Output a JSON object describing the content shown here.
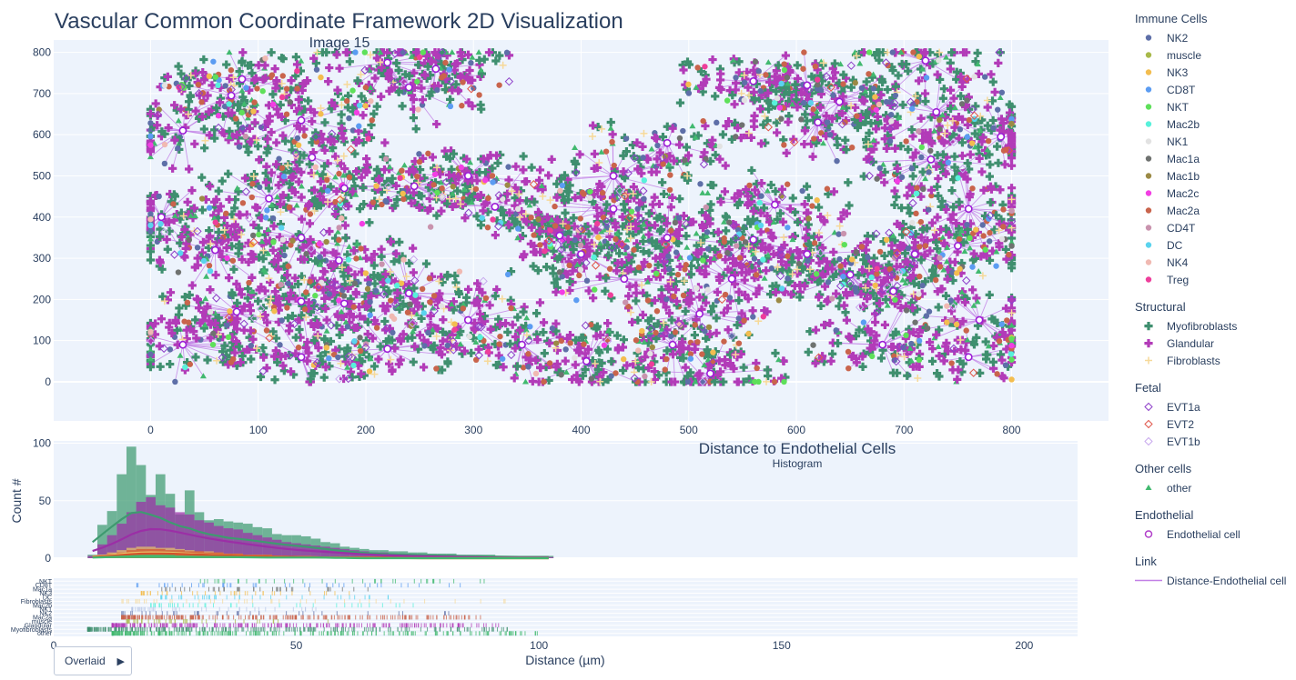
{
  "title": "Vascular Common Coordinate Framework 2D Visualization",
  "colors": {
    "plot_bg": "#edf3fc",
    "grid": "#ffffff",
    "link": "#b36ae2",
    "endothelial": "#9b1cd6"
  },
  "scatter": {
    "subtitle": "Image 15",
    "x_ticks": [
      0,
      100,
      200,
      300,
      400,
      500,
      600,
      700,
      800
    ],
    "y_ticks": [
      0,
      100,
      200,
      300,
      400,
      500,
      600,
      700,
      800
    ],
    "xlim": [
      -90,
      890
    ],
    "ylim": [
      -95,
      830
    ]
  },
  "histogram": {
    "title": "Distance to Endothelial Cells",
    "subtitle": "Histogram",
    "ylabel": "Count #",
    "y_ticks": [
      0,
      50,
      100
    ],
    "ylim": [
      0,
      102
    ]
  },
  "rug": {
    "xlabel": "Distance (µm)",
    "x_ticks": [
      0,
      50,
      100,
      150,
      200
    ],
    "xlim": [
      0,
      211
    ],
    "row_labels": [
      "NKT",
      "CD8T",
      "Mac1a",
      "NK3",
      "DC",
      "Fibroblasts",
      "Mac2b",
      "NK1",
      "NK2",
      "Mac2a",
      "muscle",
      "Glandular",
      "Myofibroblasts",
      "other"
    ]
  },
  "legend": {
    "groups": [
      {
        "title": "Immune Cells",
        "items": [
          {
            "label": "NK2",
            "color": "#5e6fa8",
            "symbol": "circle"
          },
          {
            "label": "muscle",
            "color": "#a8b94a",
            "symbol": "circle"
          },
          {
            "label": "NK3",
            "color": "#f3bd4f",
            "symbol": "circle"
          },
          {
            "label": "CD8T",
            "color": "#5b9cf2",
            "symbol": "circle"
          },
          {
            "label": "NKT",
            "color": "#5ee05a",
            "symbol": "circle"
          },
          {
            "label": "Mac2b",
            "color": "#58f1db",
            "symbol": "circle"
          },
          {
            "label": "NK1",
            "color": "#e2e2e2",
            "symbol": "circle"
          },
          {
            "label": "Mac1a",
            "color": "#6f7270",
            "symbol": "circle"
          },
          {
            "label": "Mac1b",
            "color": "#9b8a45",
            "symbol": "circle"
          },
          {
            "label": "Mac2c",
            "color": "#f23ee3",
            "symbol": "circle"
          },
          {
            "label": "Mac2a",
            "color": "#c9644c",
            "symbol": "circle"
          },
          {
            "label": "CD4T",
            "color": "#c993ae",
            "symbol": "circle"
          },
          {
            "label": "DC",
            "color": "#5ad3ee",
            "symbol": "circle"
          },
          {
            "label": "NK4",
            "color": "#f0b9b2",
            "symbol": "circle"
          },
          {
            "label": "Treg",
            "color": "#ee3e9b",
            "symbol": "circle"
          }
        ]
      },
      {
        "title": "Structural",
        "items": [
          {
            "label": "Myofibroblasts",
            "color": "#3f8f6f",
            "symbol": "cross"
          },
          {
            "label": "Glandular",
            "color": "#b23bb8",
            "symbol": "cross"
          },
          {
            "label": "Fibroblasts",
            "color": "#f6d999",
            "symbol": "cross-open"
          }
        ]
      },
      {
        "title": "Fetal",
        "items": [
          {
            "label": "EVT1a",
            "color": "#8e3fc9",
            "symbol": "diamond-open"
          },
          {
            "label": "EVT2",
            "color": "#e0574a",
            "symbol": "diamond-open"
          },
          {
            "label": "EVT1b",
            "color": "#c8a8ee",
            "symbol": "diamond-open"
          }
        ]
      },
      {
        "title": "Other cells",
        "items": [
          {
            "label": "other",
            "color": "#41b96f",
            "symbol": "triangle"
          }
        ]
      },
      {
        "title": "Endothelial",
        "items": [
          {
            "label": "Endothelial cell",
            "color": "#b13ec9",
            "symbol": "circle-open"
          }
        ]
      },
      {
        "title": "Link",
        "items": [
          {
            "label": "Distance-Endothelial cell",
            "color": "#c27fe6",
            "symbol": "line"
          }
        ]
      }
    ]
  },
  "chart_data": [
    {
      "type": "scatter",
      "title": "Vascular Common Coordinate Framework 2D Visualization",
      "subtitle": "Image 15",
      "xlim": [
        -90,
        890
      ],
      "ylim": [
        -95,
        830
      ],
      "grid": true,
      "legend_position": "right",
      "endothelial_centers": [
        [
          85,
          735
        ],
        [
          140,
          635
        ],
        [
          220,
          775
        ],
        [
          265,
          760
        ],
        [
          240,
          715
        ],
        [
          30,
          610
        ],
        [
          75,
          695
        ],
        [
          150,
          545
        ],
        [
          110,
          445
        ],
        [
          180,
          470
        ],
        [
          245,
          475
        ],
        [
          295,
          500
        ],
        [
          10,
          400
        ],
        [
          60,
          320
        ],
        [
          140,
          350
        ],
        [
          175,
          295
        ],
        [
          240,
          215
        ],
        [
          30,
          90
        ],
        [
          80,
          170
        ],
        [
          140,
          195
        ],
        [
          180,
          190
        ],
        [
          140,
          60
        ],
        [
          220,
          80
        ],
        [
          295,
          150
        ],
        [
          345,
          90
        ],
        [
          380,
          355
        ],
        [
          320,
          425
        ],
        [
          430,
          420
        ],
        [
          400,
          310
        ],
        [
          440,
          250
        ],
        [
          510,
          165
        ],
        [
          480,
          350
        ],
        [
          540,
          250
        ],
        [
          560,
          345
        ],
        [
          610,
          310
        ],
        [
          650,
          260
        ],
        [
          690,
          220
        ],
        [
          710,
          310
        ],
        [
          750,
          330
        ],
        [
          760,
          420
        ],
        [
          790,
          595
        ],
        [
          620,
          630
        ],
        [
          730,
          655
        ],
        [
          725,
          540
        ],
        [
          580,
          430
        ],
        [
          485,
          90
        ],
        [
          520,
          20
        ],
        [
          430,
          500
        ],
        [
          480,
          580
        ],
        [
          560,
          730
        ],
        [
          610,
          720
        ],
        [
          640,
          680
        ],
        [
          720,
          780
        ],
        [
          760,
          60
        ],
        [
          680,
          90
        ],
        [
          770,
          150
        ],
        [
          405,
          50
        ]
      ],
      "background_cell_counts": {
        "Myofibroblasts": 1300,
        "Glandular": 1200,
        "other": 220,
        "Fibroblasts": 180,
        "Mac2a": 220,
        "NK2": 140,
        "Mac1a": 50,
        "NK3": 40,
        "CD8T": 40,
        "NKT": 40,
        "Mac2b": 20,
        "NK1": 25,
        "Mac1b": 20,
        "Mac2c": 20,
        "CD4T": 20,
        "DC": 20,
        "NK4": 20,
        "Treg": 20,
        "EVT1a": 120,
        "EVT2": 25,
        "EVT1b": 25
      }
    },
    {
      "type": "bar",
      "title": "Distance to Endothelial Cells",
      "subtitle": "Histogram",
      "ylabel": "Count #",
      "barmode": "overlay",
      "bin_width": 2,
      "x_start": 7,
      "ylim": [
        0,
        102
      ],
      "series": [
        {
          "name": "Myofibroblasts",
          "color": "#3f9a70",
          "values": [
            3,
            29,
            41,
            73,
            97,
            81,
            55,
            73,
            56,
            38,
            59,
            40,
            33,
            34,
            32,
            31,
            30,
            27,
            26,
            21,
            20,
            20,
            19,
            17,
            14,
            13,
            10,
            9,
            8,
            7,
            7,
            6,
            6,
            5,
            5,
            4,
            4,
            4,
            3,
            3,
            3,
            3,
            2,
            2,
            2,
            2,
            2,
            2
          ]
        },
        {
          "name": "Glandular",
          "color": "#9b2fa6",
          "values": [
            2,
            12,
            20,
            30,
            40,
            49,
            53,
            46,
            44,
            40,
            38,
            33,
            31,
            28,
            26,
            25,
            22,
            20,
            18,
            16,
            14,
            13,
            12,
            11,
            10,
            9,
            8,
            7,
            6,
            5,
            5,
            4,
            4,
            3,
            3,
            3,
            2,
            2,
            2,
            2,
            1,
            1,
            1,
            1,
            1,
            1,
            1,
            1
          ]
        },
        {
          "name": "Fibroblasts",
          "color": "#e9c46a",
          "values": [
            0,
            3,
            5,
            7,
            9,
            10,
            10,
            9,
            9,
            8,
            7,
            6,
            6,
            5,
            4,
            4,
            3,
            3,
            3,
            2,
            2,
            2,
            2,
            1,
            1,
            1,
            1,
            1,
            1,
            1,
            1,
            0,
            0,
            0,
            0,
            0,
            0,
            0,
            0,
            0,
            0,
            0,
            0,
            0,
            0,
            0,
            0,
            0
          ]
        },
        {
          "name": "Mac2a",
          "color": "#d3542a",
          "values": [
            0,
            2,
            4,
            5,
            7,
            8,
            8,
            8,
            7,
            7,
            6,
            6,
            5,
            5,
            4,
            4,
            3,
            3,
            3,
            2,
            2,
            2,
            2,
            1,
            1,
            1,
            1,
            1,
            1,
            1,
            1,
            1,
            0,
            0,
            0,
            0,
            0,
            0,
            0,
            0,
            0,
            0,
            0,
            0,
            0,
            0,
            0,
            0
          ]
        },
        {
          "name": "other",
          "color": "#41b96f",
          "values": [
            0,
            1,
            2,
            3,
            3,
            3,
            3,
            3,
            3,
            2,
            2,
            2,
            2,
            2,
            2,
            2,
            1,
            1,
            1,
            1,
            1,
            1,
            1,
            1,
            1,
            1,
            0,
            0,
            0,
            0,
            0,
            0,
            0,
            0,
            0,
            0,
            0,
            0,
            0,
            0,
            0,
            0,
            0,
            0,
            0,
            0,
            0,
            0
          ]
        }
      ]
    },
    {
      "type": "scatter",
      "subtype": "rug",
      "xlabel": "Distance (µm)",
      "xlim": [
        0,
        211
      ],
      "rows": [
        "NKT",
        "CD8T",
        "Mac1a",
        "NK3",
        "DC",
        "Fibroblasts",
        "Mac2b",
        "NK1",
        "NK2",
        "Mac2a",
        "muscle",
        "Glandular",
        "Myofibroblasts",
        "other"
      ],
      "row_colors": {
        "NKT": "#41b96f",
        "CD8T": "#5b9cf2",
        "Mac1a": "#6f7270",
        "NK3": "#f3bd4f",
        "DC": "#5ad3ee",
        "Fibroblasts": "#f6d999",
        "Mac2b": "#58f1db",
        "NK1": "#b8c7e6",
        "NK2": "#5e6fa8",
        "Mac2a": "#c9644c",
        "muscle": "#a8b94a",
        "Glandular": "#b23bb8",
        "Myofibroblasts": "#3f8f6f",
        "other": "#41b96f"
      },
      "row_ranges": {
        "NKT": [
          30,
          92
        ],
        "CD8T": [
          17,
          88
        ],
        "Mac1a": [
          22,
          65
        ],
        "NK3": [
          18,
          62
        ],
        "DC": [
          22,
          70
        ],
        "Fibroblasts": [
          14,
          95
        ],
        "Mac2b": [
          20,
          80
        ],
        "NK1": [
          16,
          55
        ],
        "NK2": [
          14,
          82
        ],
        "Mac2a": [
          14,
          88
        ],
        "muscle": [
          15,
          60
        ],
        "Glandular": [
          12,
          93
        ],
        "Myofibroblasts": [
          7,
          96
        ],
        "other": [
          12,
          100
        ]
      }
    }
  ],
  "controls": {
    "overlay_label": "Overlaid",
    "overlay_arrow": "▶"
  }
}
